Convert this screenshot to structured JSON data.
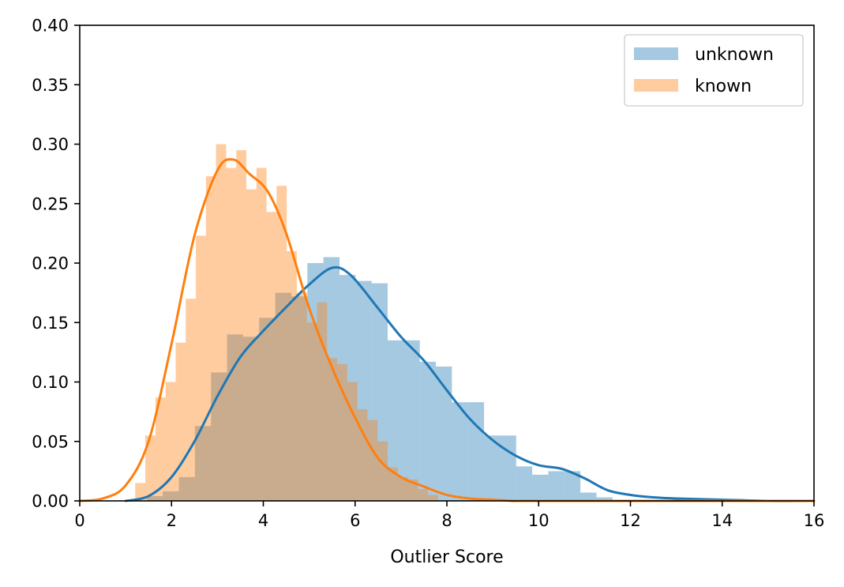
{
  "chart_data": {
    "type": "histogram",
    "title": "",
    "xlabel": "Outlier Score",
    "ylabel": "",
    "xlim": [
      0,
      16
    ],
    "ylim": [
      0,
      0.4
    ],
    "xticks": [
      "0",
      "2",
      "4",
      "6",
      "8",
      "10",
      "12",
      "14",
      "16"
    ],
    "yticks": [
      "0.00",
      "0.05",
      "0.10",
      "0.15",
      "0.20",
      "0.25",
      "0.30",
      "0.35",
      "0.40"
    ],
    "legend": {
      "position": "upper-right",
      "entries": [
        "unknown",
        "known"
      ]
    },
    "grid": false,
    "series": [
      {
        "name": "unknown",
        "bar_color": "#1f77b4",
        "line_color": "#1f77b4",
        "bins": [
          [
            1.46,
            1.81,
            0.004
          ],
          [
            1.81,
            2.16,
            0.008
          ],
          [
            2.16,
            2.51,
            0.02
          ],
          [
            2.51,
            2.86,
            0.063
          ],
          [
            2.86,
            3.21,
            0.108
          ],
          [
            3.21,
            3.56,
            0.14
          ],
          [
            3.56,
            3.91,
            0.138
          ],
          [
            3.91,
            4.26,
            0.154
          ],
          [
            4.26,
            4.61,
            0.175
          ],
          [
            4.61,
            4.96,
            0.172
          ],
          [
            4.96,
            5.31,
            0.2
          ],
          [
            5.31,
            5.66,
            0.205
          ],
          [
            5.66,
            6.01,
            0.19
          ],
          [
            6.01,
            6.36,
            0.185
          ],
          [
            6.36,
            6.71,
            0.183
          ],
          [
            6.71,
            7.06,
            0.135
          ],
          [
            7.06,
            7.41,
            0.135
          ],
          [
            7.41,
            7.76,
            0.117
          ],
          [
            7.76,
            8.11,
            0.113
          ],
          [
            8.11,
            8.46,
            0.083
          ],
          [
            8.46,
            8.81,
            0.083
          ],
          [
            8.81,
            9.16,
            0.055
          ],
          [
            9.16,
            9.51,
            0.055
          ],
          [
            9.51,
            9.86,
            0.029
          ],
          [
            9.86,
            10.21,
            0.022
          ],
          [
            10.21,
            10.56,
            0.025
          ],
          [
            10.56,
            10.91,
            0.025
          ],
          [
            10.91,
            11.26,
            0.007
          ],
          [
            11.26,
            11.61,
            0.003
          ]
        ],
        "kde": {
          "x": [
            1.0,
            1.5,
            2.0,
            2.5,
            3.0,
            3.5,
            4.0,
            4.5,
            5.0,
            5.5,
            5.9,
            6.5,
            7.0,
            7.5,
            8.0,
            8.5,
            9.0,
            9.5,
            10.0,
            10.5,
            11.0,
            11.5,
            12.0,
            12.5,
            13.0,
            14.0,
            15.0,
            16.0
          ],
          "y": [
            0.0,
            0.004,
            0.02,
            0.05,
            0.088,
            0.121,
            0.143,
            0.163,
            0.182,
            0.196,
            0.19,
            0.162,
            0.138,
            0.118,
            0.093,
            0.069,
            0.051,
            0.038,
            0.03,
            0.027,
            0.019,
            0.009,
            0.005,
            0.003,
            0.002,
            0.001,
            0.0,
            0.0
          ]
        }
      },
      {
        "name": "known",
        "bar_color": "#ff7f0e",
        "line_color": "#ff7f0e",
        "bins": [
          [
            1.21,
            1.43,
            0.015
          ],
          [
            1.43,
            1.65,
            0.055
          ],
          [
            1.65,
            1.87,
            0.087
          ],
          [
            1.87,
            2.09,
            0.1
          ],
          [
            2.09,
            2.31,
            0.133
          ],
          [
            2.31,
            2.53,
            0.17
          ],
          [
            2.53,
            2.75,
            0.223
          ],
          [
            2.75,
            2.97,
            0.273
          ],
          [
            2.97,
            3.19,
            0.3
          ],
          [
            3.19,
            3.41,
            0.28
          ],
          [
            3.41,
            3.63,
            0.295
          ],
          [
            3.63,
            3.85,
            0.262
          ],
          [
            3.85,
            4.07,
            0.28
          ],
          [
            4.07,
            4.29,
            0.243
          ],
          [
            4.29,
            4.51,
            0.265
          ],
          [
            4.51,
            4.73,
            0.21
          ],
          [
            4.73,
            4.95,
            0.175
          ],
          [
            4.95,
            5.17,
            0.15
          ],
          [
            5.17,
            5.39,
            0.167
          ],
          [
            5.39,
            5.61,
            0.12
          ],
          [
            5.61,
            5.83,
            0.115
          ],
          [
            5.83,
            6.05,
            0.1
          ],
          [
            6.05,
            6.27,
            0.077
          ],
          [
            6.27,
            6.49,
            0.068
          ],
          [
            6.49,
            6.71,
            0.05
          ],
          [
            6.71,
            6.93,
            0.028
          ],
          [
            6.93,
            7.15,
            0.02
          ],
          [
            7.15,
            7.37,
            0.018
          ],
          [
            7.37,
            7.59,
            0.01
          ],
          [
            7.59,
            7.81,
            0.005
          ]
        ],
        "kde": {
          "x": [
            0.0,
            0.5,
            1.0,
            1.5,
            2.0,
            2.5,
            3.0,
            3.35,
            3.7,
            4.1,
            4.5,
            5.0,
            5.5,
            6.0,
            6.5,
            7.0,
            7.5,
            8.0,
            8.5,
            9.0,
            9.5,
            10.0,
            16.0
          ],
          "y": [
            0.0,
            0.002,
            0.013,
            0.05,
            0.132,
            0.223,
            0.278,
            0.287,
            0.275,
            0.26,
            0.225,
            0.162,
            0.112,
            0.07,
            0.036,
            0.02,
            0.012,
            0.005,
            0.002,
            0.001,
            0.0,
            0.0,
            0.0
          ]
        }
      }
    ]
  }
}
